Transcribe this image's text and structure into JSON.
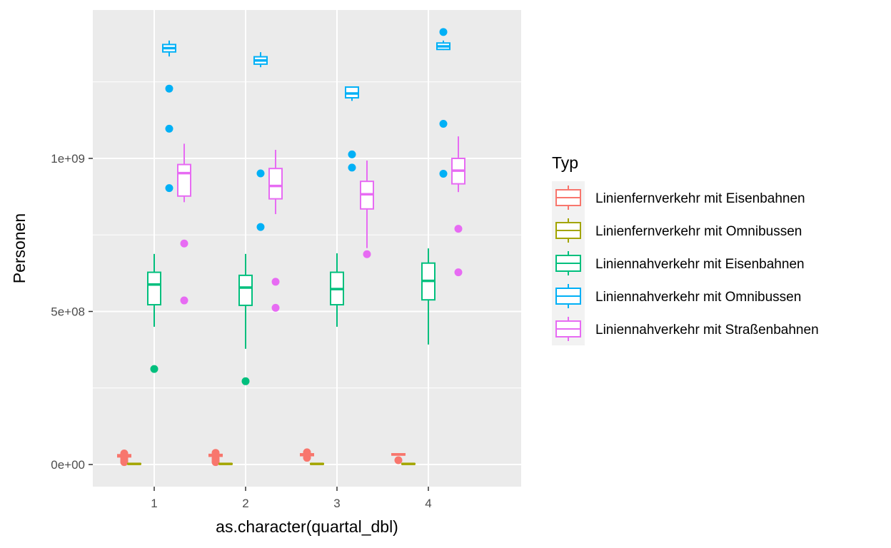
{
  "chart_data": {
    "type": "boxplot",
    "xlabel": "as.character(quartal_dbl)",
    "ylabel": "Personen",
    "categories": [
      "1",
      "2",
      "3",
      "4"
    ],
    "y_ticks": [
      {
        "value": 0,
        "label": "0e+00"
      },
      {
        "value": 500000000,
        "label": "5e+08"
      },
      {
        "value": 1000000000,
        "label": "1e+09"
      }
    ],
    "ylim": [
      -70000000,
      1400000000
    ],
    "grid": true,
    "legend": {
      "title": "Typ",
      "position": "right"
    },
    "series": [
      {
        "name": "Linienfernverkehr mit Eisenbahnen",
        "color": "#F8766D",
        "boxes": [
          {
            "min": 25000000,
            "q1": 25000000,
            "median": 29000000,
            "q3": 32000000,
            "max": 34000000,
            "outliers": [
              8000000,
              14000000,
              21000000,
              36000000
            ]
          },
          {
            "min": 25000000,
            "q1": 27000000,
            "median": 30000000,
            "q3": 33000000,
            "max": 35000000,
            "outliers": [
              8000000,
              13000000,
              20000000,
              38000000
            ]
          },
          {
            "min": 28000000,
            "q1": 29000000,
            "median": 32000000,
            "q3": 35000000,
            "max": 37000000,
            "outliers": [
              22000000,
              40000000
            ]
          },
          {
            "min": 30000000,
            "q1": 31000000,
            "median": 33000000,
            "q3": 35000000,
            "max": 37000000,
            "outliers": [
              14000000
            ]
          }
        ]
      },
      {
        "name": "Linienfernverkehr mit Omnibussen",
        "color": "#A3A500",
        "boxes": [
          {
            "min": 0,
            "q1": 1000000,
            "median": 2000000,
            "q3": 3000000,
            "max": 4000000,
            "outliers": []
          },
          {
            "min": 0,
            "q1": 1000000,
            "median": 2000000,
            "q3": 3000000,
            "max": 4000000,
            "outliers": []
          },
          {
            "min": 0,
            "q1": 1000000,
            "median": 2000000,
            "q3": 3000000,
            "max": 4000000,
            "outliers": []
          },
          {
            "min": 0,
            "q1": 1000000,
            "median": 2000000,
            "q3": 3000000,
            "max": 4000000,
            "outliers": []
          }
        ]
      },
      {
        "name": "Liniennahverkehr mit Eisenbahnen",
        "color": "#00BF7D",
        "boxes": [
          {
            "min": 450000000,
            "q1": 522000000,
            "median": 588000000,
            "q3": 628000000,
            "max": 688000000,
            "outliers": [
              312000000
            ]
          },
          {
            "min": 378000000,
            "q1": 520000000,
            "median": 578000000,
            "q3": 618000000,
            "max": 688000000,
            "outliers": [
              272000000
            ]
          },
          {
            "min": 450000000,
            "q1": 522000000,
            "median": 573000000,
            "q3": 628000000,
            "max": 690000000,
            "outliers": []
          },
          {
            "min": 392000000,
            "q1": 538000000,
            "median": 600000000,
            "q3": 658000000,
            "max": 706000000,
            "outliers": []
          }
        ]
      },
      {
        "name": "Liniennahverkehr mit Omnibussen",
        "color": "#00B0F6",
        "boxes": [
          {
            "min": 1333000000,
            "q1": 1348000000,
            "median": 1360000000,
            "q3": 1372000000,
            "max": 1385000000,
            "outliers": [
              1228000000,
              1097000000,
              903000000
            ]
          },
          {
            "min": 1298000000,
            "q1": 1308000000,
            "median": 1320000000,
            "q3": 1332000000,
            "max": 1347000000,
            "outliers": [
              951000000,
              776000000
            ]
          },
          {
            "min": 1188000000,
            "q1": 1198000000,
            "median": 1212000000,
            "q3": 1233000000,
            "max": 1233000000,
            "outliers": [
              1013000000,
              970000000
            ]
          },
          {
            "min": 1354000000,
            "q1": 1356000000,
            "median": 1366000000,
            "q3": 1377000000,
            "max": 1385000000,
            "outliers": [
              1413000000,
              1113000000,
              950000000
            ]
          }
        ]
      },
      {
        "name": "Liniennahverkehr mit Straßenbahnen",
        "color": "#E76BF3",
        "boxes": [
          {
            "min": 857000000,
            "q1": 877000000,
            "median": 952000000,
            "q3": 980000000,
            "max": 1048000000,
            "outliers": [
              722000000,
              536000000
            ]
          },
          {
            "min": 818000000,
            "q1": 868000000,
            "median": 910000000,
            "q3": 967000000,
            "max": 1028000000,
            "outliers": [
              597000000,
              512000000
            ]
          },
          {
            "min": 707000000,
            "q1": 835000000,
            "median": 883000000,
            "q3": 925000000,
            "max": 993000000,
            "outliers": [
              687000000
            ]
          },
          {
            "min": 890000000,
            "q1": 917000000,
            "median": 960000000,
            "q3": 1000000000,
            "max": 1072000000,
            "outliers": [
              770000000,
              628000000
            ]
          }
        ]
      }
    ]
  }
}
